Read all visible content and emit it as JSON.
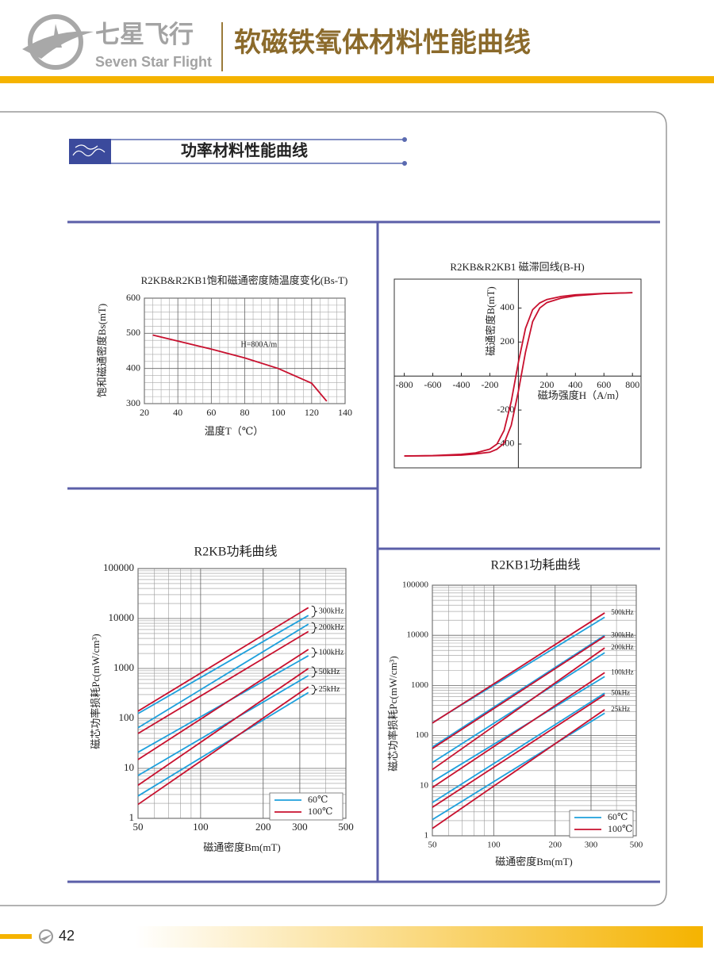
{
  "header": {
    "brand_cn": "七星飞行",
    "brand_en": "Seven Star Flight",
    "title": "软磁铁氧体材料性能曲线"
  },
  "section_title": "功率材料性能曲线",
  "page_number": 42,
  "chart_data": [
    {
      "type": "line",
      "title": "R2KB&R2KB1饱和磁通密度随温度变化(Bs-T)",
      "x_label": "温度T（℃）",
      "y_label": "饱和磁通密度Bs(mT)",
      "annotation": "H=800A/m",
      "x": [
        25,
        40,
        60,
        80,
        100,
        120,
        129
      ],
      "values": [
        495,
        478,
        455,
        430,
        400,
        358,
        307
      ],
      "color": "#c8102e",
      "xlim": [
        20,
        140
      ],
      "xticks": [
        20,
        40,
        60,
        80,
        100,
        120,
        140
      ],
      "ylim": [
        300,
        600
      ],
      "yticks": [
        300,
        400,
        500,
        600
      ],
      "grid": true
    },
    {
      "type": "line",
      "title": "R2KB&R2KB1  磁滞回线(B-H)",
      "x_label": "磁场强度H（A/m）",
      "y_label": "磁通密度B(mT)",
      "x": [
        -800,
        -600,
        -400,
        -300,
        -200,
        -150,
        -100,
        -50,
        0,
        50,
        100,
        150,
        200,
        300,
        400,
        600,
        800
      ],
      "series": [
        {
          "color": "#c8102e",
          "values": [
            -470,
            -468,
            -460,
            -452,
            -430,
            -400,
            -320,
            -150,
            80,
            280,
            390,
            430,
            450,
            468,
            478,
            486,
            490
          ]
        },
        {
          "color": "#c8102e",
          "values": [
            -470,
            -469,
            -465,
            -458,
            -448,
            -430,
            -395,
            -290,
            -90,
            140,
            320,
            400,
            432,
            458,
            472,
            485,
            490
          ]
        }
      ],
      "xlim": [
        -870,
        860
      ],
      "xticks": [
        -800,
        -600,
        -400,
        -200,
        200,
        400,
        600,
        800
      ],
      "ylim": [
        -540,
        570
      ],
      "yticks": [
        -400,
        -200,
        200,
        400
      ],
      "grid": false
    },
    {
      "type": "line",
      "title": "R2KB功耗曲线",
      "x_label": "磁通密度Bm(mT)",
      "y_label": "磁芯功率损耗Pc(mW/cm³)",
      "log": true,
      "grid": true,
      "xlim": [
        50,
        500
      ],
      "xticks": [
        50,
        100,
        200,
        300,
        500
      ],
      "ylim": [
        1,
        100000
      ],
      "yticks": [
        1,
        10,
        100,
        1000,
        10000,
        100000
      ],
      "frequencies": [
        "300kHz",
        "200kHz",
        "100kHz",
        "50kHz",
        "25kHz"
      ],
      "series": [
        {
          "name": "60℃",
          "color": "#1ea0dc",
          "x": [
            50,
            330
          ],
          "lines": [
            [
              125,
              11500
            ],
            [
              65,
              7700
            ],
            [
              21,
              1800
            ],
            [
              7.2,
              720
            ],
            [
              2.8,
              330
            ]
          ]
        },
        {
          "name": "100℃",
          "color": "#c8102e",
          "x": [
            50,
            330
          ],
          "lines": [
            [
              140,
              16500
            ],
            [
              50,
              5500
            ],
            [
              15,
              2400
            ],
            [
              4.6,
              1000
            ],
            [
              1.9,
              430
            ]
          ]
        }
      ]
    },
    {
      "type": "line",
      "title": "R2KB1功耗曲线",
      "x_label": "磁通密度Bm(mT)",
      "y_label": "磁芯功率损耗Pc(mW/cm³)",
      "log": true,
      "grid": true,
      "xlim": [
        50,
        500
      ],
      "xticks": [
        50,
        100,
        200,
        300,
        500
      ],
      "ylim": [
        1,
        100000
      ],
      "yticks": [
        1,
        10,
        100,
        1000,
        10000,
        100000
      ],
      "frequencies": [
        "500kHz",
        "300kHz",
        "200kHz",
        "100kHz",
        "50kHz",
        "25kHz"
      ],
      "series": [
        {
          "name": "60℃",
          "color": "#1ea0dc",
          "x": [
            50,
            350
          ],
          "lines": [
            [
              180,
              23000
            ],
            [
              59,
              10000
            ],
            [
              29,
              4500
            ],
            [
              12,
              1500
            ],
            [
              4.6,
              700
            ],
            [
              2.1,
              280
            ]
          ]
        },
        {
          "name": "100℃",
          "color": "#c8102e",
          "x": [
            50,
            350
          ],
          "lines": [
            [
              177,
              28000
            ],
            [
              55,
              9500
            ],
            [
              21,
              5600
            ],
            [
              9.2,
              1800
            ],
            [
              3.7,
              650
            ],
            [
              1.4,
              330
            ]
          ]
        }
      ]
    }
  ]
}
